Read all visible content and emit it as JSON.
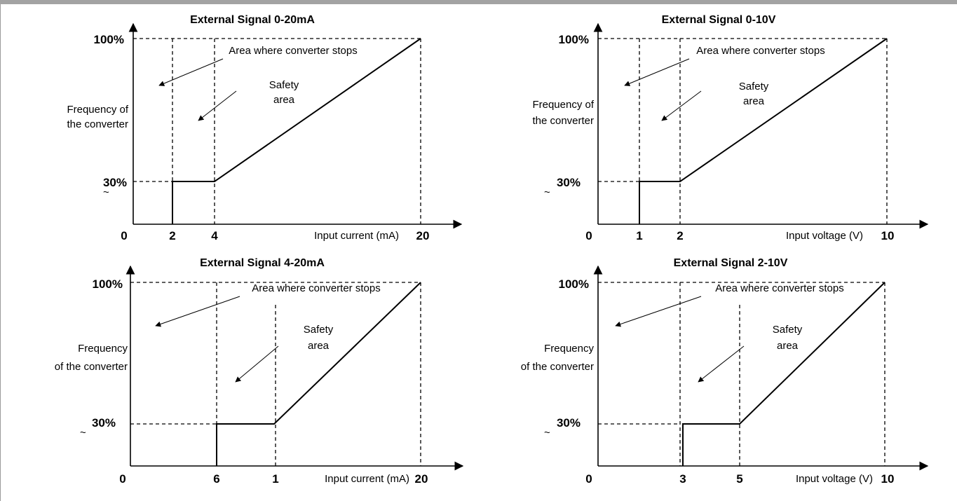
{
  "colors": {
    "top_bar": "#a3a3a3",
    "line": "#000000",
    "background": "#ffffff"
  },
  "panels": [
    {
      "title": "External Signal 0-20mA",
      "y_top": "100%",
      "y_low_tilde": "~",
      "y_low": "30%",
      "y_label_line1": "Frequency of",
      "y_label_line2": "the converter",
      "origin": "0",
      "tick_a": "2",
      "tick_b": "4",
      "tick_end": "20",
      "x_label": "Input current (mA)",
      "stop_label": "Area where converter stops",
      "safety_line1": "Safety",
      "safety_line2": "area"
    },
    {
      "title": "External Signal 0-10V",
      "y_top": "100%",
      "y_low_tilde": "~",
      "y_low": "30%",
      "y_label_line1": "Frequency of",
      "y_label_line2": "the converter",
      "origin": "0",
      "tick_a": "1",
      "tick_b": "2",
      "tick_end": "10",
      "x_label": "Input voltage (V)",
      "stop_label": "Area where converter stops",
      "safety_line1": "Safety",
      "safety_line2": "area"
    },
    {
      "title": "External Signal 4-20mA",
      "y_top": "100%",
      "y_low_tilde": "~",
      "y_low": "30%",
      "y_label_line1": "Frequency",
      "y_label_line2": "of the converter",
      "origin": "0",
      "tick_a": "6",
      "tick_b": "1",
      "tick_end": "20",
      "x_label": "Input current (mA)",
      "stop_label": "Area where converter stops",
      "safety_line1": "Safety",
      "safety_line2": "area"
    },
    {
      "title": "External Signal 2-10V",
      "y_top": "100%",
      "y_low_tilde": "~",
      "y_low": "30%",
      "y_label_line1": "Frequency",
      "y_label_line2": "of the converter",
      "origin": "0",
      "tick_a": "3",
      "tick_b": "5",
      "tick_end": "10",
      "x_label": "Input voltage (V)",
      "stop_label": "Area where converter stops",
      "safety_line1": "Safety",
      "safety_line2": "area"
    }
  ]
}
